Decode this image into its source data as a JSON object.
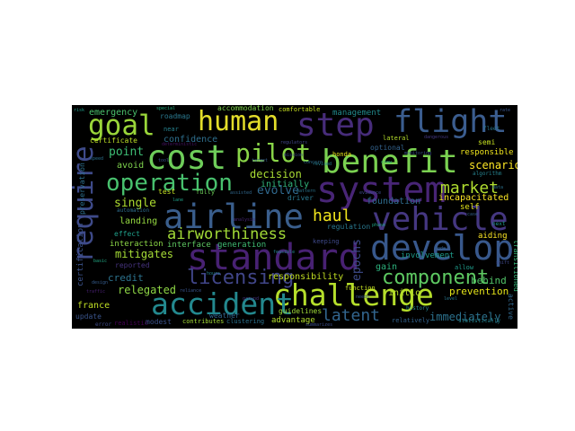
{
  "words": [
    {
      "text": "human",
      "color": "#e3dd2a"
    },
    {
      "text": "step",
      "color": "#472c7a"
    },
    {
      "text": "flight",
      "color": "#3b5d8f"
    },
    {
      "text": "goal",
      "color": "#9ad63a"
    },
    {
      "text": "cost",
      "color": "#6ecd5a"
    },
    {
      "text": "pilot",
      "color": "#89d548"
    },
    {
      "text": "benefit",
      "color": "#7ad151"
    },
    {
      "text": "operation",
      "color": "#48c16e"
    },
    {
      "text": "system",
      "color": "#482576"
    },
    {
      "text": "require",
      "color": "#3e4a89"
    },
    {
      "text": "airline",
      "color": "#3a5e8c"
    },
    {
      "text": "vehicle",
      "color": "#453781"
    },
    {
      "text": "standard",
      "color": "#482173"
    },
    {
      "text": "develop",
      "color": "#38588c"
    },
    {
      "text": "airworthiness",
      "color": "#a2da37"
    },
    {
      "text": "market",
      "color": "#b0dd2f"
    },
    {
      "text": "haul",
      "color": "#f1e51d"
    },
    {
      "text": "licensing",
      "color": "#404588"
    },
    {
      "text": "challenge",
      "color": "#b5de2b"
    },
    {
      "text": "component",
      "color": "#5ec962"
    },
    {
      "text": "accident",
      "color": "#23888e"
    },
    {
      "text": "latent",
      "color": "#32658e"
    },
    {
      "text": "immediately",
      "color": "#2c728e"
    },
    {
      "text": "emergency",
      "color": "#4ac16d"
    },
    {
      "text": "roadmap",
      "color": "#2a788e"
    },
    {
      "text": "accommodation",
      "color": "#7fd34e"
    },
    {
      "text": "comfortable",
      "color": "#c8e020"
    },
    {
      "text": "management",
      "color": "#228b8d"
    },
    {
      "text": "certificate",
      "color": "#bddf26"
    },
    {
      "text": "confidence",
      "color": "#2e6f8e"
    },
    {
      "text": "point",
      "color": "#3dbc74"
    },
    {
      "text": "avoid",
      "color": "#7fd34e"
    },
    {
      "text": "decision",
      "color": "#a8db34"
    },
    {
      "text": "initially",
      "color": "#31b57b"
    },
    {
      "text": "responsible",
      "color": "#efe51c"
    },
    {
      "text": "scenario",
      "color": "#fde725"
    },
    {
      "text": "evolve",
      "color": "#30698e"
    },
    {
      "text": "single",
      "color": "#addc30"
    },
    {
      "text": "incapacitated",
      "color": "#fde725"
    },
    {
      "text": "foundation",
      "color": "#2f6c8e"
    },
    {
      "text": "behind",
      "color": "#52c569"
    },
    {
      "text": "mitigates",
      "color": "#a5db36"
    },
    {
      "text": "epochs",
      "color": "#3e4c8a"
    },
    {
      "text": "credit",
      "color": "#2c738e"
    },
    {
      "text": "relegated",
      "color": "#8ed645"
    },
    {
      "text": "responsibility",
      "color": "#c2df23"
    },
    {
      "text": "prevention",
      "color": "#e5e419"
    },
    {
      "text": "france",
      "color": "#c0df25"
    },
    {
      "text": "initio",
      "color": "#b8de29"
    },
    {
      "text": "gain",
      "color": "#2db27d"
    },
    {
      "text": "guidelines",
      "color": "#a0da39"
    },
    {
      "text": "advantage",
      "color": "#b2dd2d"
    },
    {
      "text": "landing",
      "color": "#95d840"
    },
    {
      "text": "interaction",
      "color": "#8bd646"
    },
    {
      "text": "interface",
      "color": "#5ec962"
    },
    {
      "text": "generation",
      "color": "#3fbc73"
    },
    {
      "text": "regulation",
      "color": "#2a788e"
    },
    {
      "text": "aiding",
      "color": "#fde725"
    },
    {
      "text": "self",
      "color": "#e2e418"
    },
    {
      "text": "semi",
      "color": "#c5e021"
    },
    {
      "text": "relatively",
      "color": "#33628d"
    },
    {
      "text": "modest",
      "color": "#3b528b"
    },
    {
      "text": "contributes",
      "color": "#a2da37"
    },
    {
      "text": "involvement",
      "color": "#1e9b8a"
    },
    {
      "text": "update",
      "color": "#3a548c"
    },
    {
      "text": "effect",
      "color": "#1f9e89"
    },
    {
      "text": "weather",
      "color": "#32648e"
    },
    {
      "text": "reported",
      "color": "#46337e"
    },
    {
      "text": "driver",
      "color": "#2a788e"
    },
    {
      "text": "test",
      "color": "#c2df23"
    },
    {
      "text": "honda",
      "color": "#e7e419"
    },
    {
      "text": "lateral",
      "color": "#b5de2b"
    },
    {
      "text": "optional",
      "color": "#33638d"
    },
    {
      "text": "fully",
      "color": "#6ece58"
    },
    {
      "text": "preservation",
      "color": "#2d708e"
    },
    {
      "text": "certification",
      "color": "#3b528b"
    },
    {
      "text": "keeping",
      "color": "#3e4989"
    },
    {
      "text": "transitioned",
      "color": "#35b779"
    },
    {
      "text": "realistic",
      "color": "#440154"
    },
    {
      "text": "error",
      "color": "#3e4a89"
    },
    {
      "text": "near",
      "color": "#26828e"
    },
    {
      "text": "regulators",
      "color": "#404688"
    },
    {
      "text": "function",
      "color": "#c5e021"
    },
    {
      "text": "active",
      "color": "#31688e"
    },
    {
      "text": "automation",
      "color": "#2e6e8e"
    },
    {
      "text": "reliance",
      "color": "#3a548c"
    },
    {
      "text": "allow",
      "color": "#1f9a8a"
    },
    {
      "text": "statistically",
      "color": "#25858e"
    },
    {
      "text": "history",
      "color": "#24868e"
    },
    {
      "text": "special",
      "color": "#28ae80"
    },
    {
      "text": "lane",
      "color": "#1fa188"
    },
    {
      "text": "traffic",
      "color": "#482071"
    },
    {
      "text": "summarizes",
      "color": "#3d4e8a"
    },
    {
      "text": "ground",
      "color": "#46327e"
    },
    {
      "text": "clustering",
      "color": "#2c728e"
    },
    {
      "text": "fleet",
      "color": "#2a768e"
    },
    {
      "text": "deterministic",
      "color": "#471365"
    },
    {
      "text": "algorithm",
      "color": "#26828e"
    },
    {
      "text": "next",
      "color": "#1f978b"
    },
    {
      "text": "evidence",
      "color": "#3e4c8a"
    },
    {
      "text": "analysis",
      "color": "#482878"
    },
    {
      "text": "assisted",
      "color": "#31688e"
    },
    {
      "text": "dangerous",
      "color": "#453882"
    },
    {
      "text": "concern",
      "color": "#2e6e8e"
    },
    {
      "text": "monitoring",
      "color": "#3b528b"
    },
    {
      "text": "speed",
      "color": "#2c718e"
    },
    {
      "text": "basic",
      "color": "#22a884"
    },
    {
      "text": "feasible",
      "color": "#25848e"
    },
    {
      "text": "needs",
      "color": "#39568c"
    },
    {
      "text": "revised",
      "color": "#277f8e"
    },
    {
      "text": "mode",
      "color": "#355f8d"
    },
    {
      "text": "shift",
      "color": "#3f4788"
    },
    {
      "text": "hours",
      "color": "#26828e"
    },
    {
      "text": "crew",
      "color": "#31b57b"
    },
    {
      "text": "design",
      "color": "#365c8d"
    },
    {
      "text": "pattern",
      "color": "#2b758e"
    },
    {
      "text": "rate",
      "color": "#39558c"
    },
    {
      "text": "mission",
      "color": "#3e4989"
    },
    {
      "text": "risk",
      "color": "#1e9c89"
    },
    {
      "text": "target",
      "color": "#365d8d"
    },
    {
      "text": "phase",
      "color": "#20a386"
    },
    {
      "text": "tool",
      "color": "#3a548c"
    },
    {
      "text": "case",
      "color": "#34618d"
    },
    {
      "text": "level",
      "color": "#2a778e"
    },
    {
      "text": "data",
      "color": "#2c728e"
    }
  ]
}
